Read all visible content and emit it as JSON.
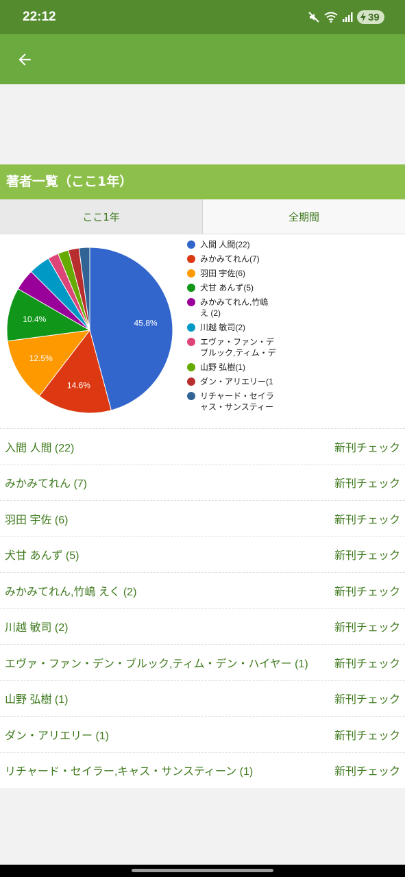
{
  "status_bar": {
    "time": "22:12",
    "battery_level": "39",
    "icons": [
      "mute-icon",
      "wifi-icon",
      "signal-icon",
      "charging-icon"
    ]
  },
  "app_bar": {
    "back_icon": "arrow-left-icon"
  },
  "section": {
    "title": "著者一覧（ここ1年）"
  },
  "tabs": [
    {
      "label": "ここ1年",
      "selected": true
    },
    {
      "label": "全期間",
      "selected": false
    }
  ],
  "chart_data": {
    "type": "pie",
    "slices": [
      {
        "label": "入間 人間(22)",
        "value": 22,
        "percent_label": "45.8%",
        "color": "#3366cc"
      },
      {
        "label": "みかみてれん(7)",
        "value": 7,
        "percent_label": "14.6%",
        "color": "#dc3912"
      },
      {
        "label": "羽田 宇佐(6)",
        "value": 6,
        "percent_label": "12.5%",
        "color": "#ff9900"
      },
      {
        "label": "犬甘 あんず(5)",
        "value": 5,
        "percent_label": "10.4%",
        "color": "#109618"
      },
      {
        "label": "みかみてれん,竹嶋 え (2)",
        "value": 2,
        "percent_label": "",
        "color": "#990099"
      },
      {
        "label": "川越 敏司(2)",
        "value": 2,
        "percent_label": "",
        "color": "#0099c6"
      },
      {
        "label": "エヴァ・ファン・デ ブルック,ティム・デ",
        "value": 1,
        "percent_label": "",
        "color": "#dd4477"
      },
      {
        "label": "山野 弘樹(1)",
        "value": 1,
        "percent_label": "",
        "color": "#66aa00"
      },
      {
        "label": "ダン・アリエリー(1",
        "value": 1,
        "percent_label": "",
        "color": "#b82e2e"
      },
      {
        "label": "リチャード・セイラ ャス・サンスティー",
        "value": 1,
        "percent_label": "",
        "color": "#316395"
      }
    ],
    "legend_position": "right"
  },
  "authors": [
    {
      "name": "入間 人間 (22)",
      "action": "新刊チェック"
    },
    {
      "name": "みかみてれん (7)",
      "action": "新刊チェック"
    },
    {
      "name": "羽田 宇佐 (6)",
      "action": "新刊チェック"
    },
    {
      "name": "犬甘 あんず (5)",
      "action": "新刊チェック"
    },
    {
      "name": "みかみてれん,竹嶋 えく (2)",
      "action": "新刊チェック"
    },
    {
      "name": "川越 敏司 (2)",
      "action": "新刊チェック"
    },
    {
      "name": "エヴァ・ファン・デン・ブルック,ティム・デン・ハイヤー (1)",
      "action": "新刊チェック"
    },
    {
      "name": "山野 弘樹 (1)",
      "action": "新刊チェック"
    },
    {
      "name": "ダン・アリエリー (1)",
      "action": "新刊チェック"
    },
    {
      "name": "リチャード・セイラー,キャス・サンスティーン (1)",
      "action": "新刊チェック"
    }
  ],
  "colors": {
    "status_bar": "#548b2e",
    "app_bar": "#6aaa3e",
    "section_header": "#8cc04b",
    "link_text": "#3f7a1e"
  }
}
